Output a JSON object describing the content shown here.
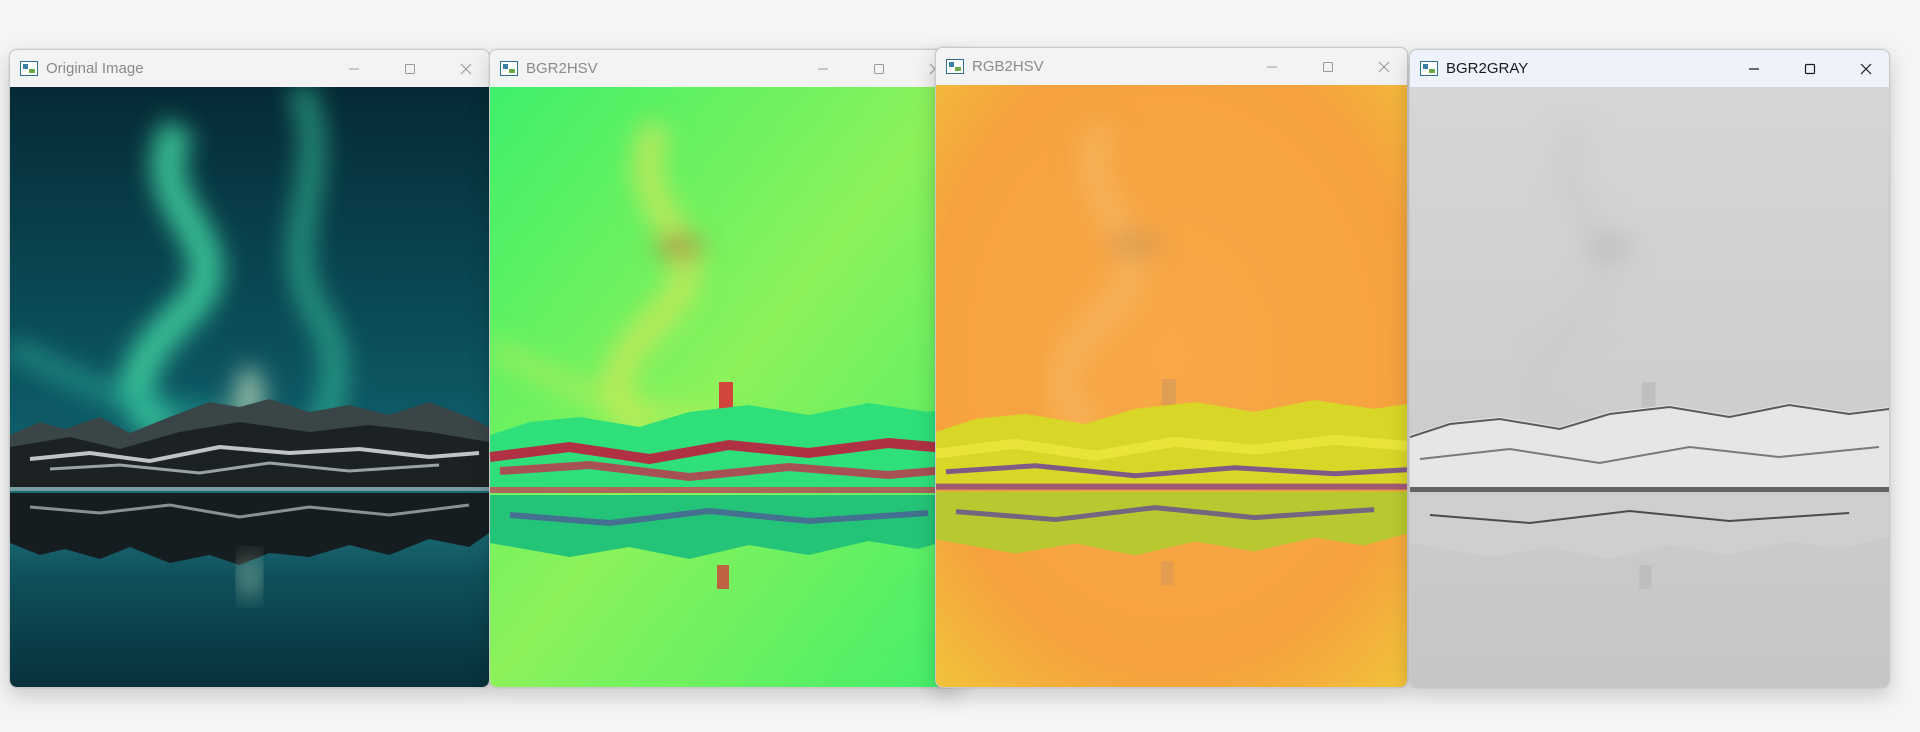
{
  "screen": {
    "background": "#f5f5f5"
  },
  "windows": [
    {
      "title": "Original Image",
      "active": false,
      "image": "aurora-photo-original"
    },
    {
      "title": "BGR2HSV",
      "active": false,
      "image": "aurora-photo-bgr2hsv"
    },
    {
      "title": "RGB2HSV",
      "active": false,
      "image": "aurora-photo-rgb2hsv"
    },
    {
      "title": "BGR2GRAY",
      "active": true,
      "image": "aurora-photo-grayscale"
    }
  ],
  "icons": {
    "app": "opencv-window-icon",
    "minimize": "minimize-icon",
    "maximize": "maximize-icon",
    "close": "close-icon"
  }
}
